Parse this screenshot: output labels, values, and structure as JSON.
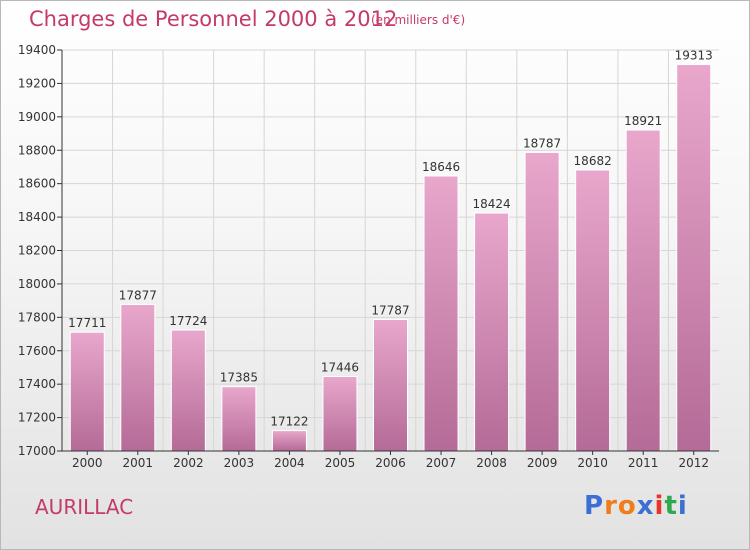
{
  "header": {
    "title": "Charges de Personnel 2000 à 2012",
    "subtitle": "(en milliers d'€)"
  },
  "footer": {
    "city": "AURILLAC",
    "logo": {
      "letters": [
        "P",
        "r",
        "o",
        "x",
        "i",
        "t",
        "i"
      ],
      "colors": [
        "#3b6fd4",
        "#f07d1a",
        "#f07d1a",
        "#3b6fd4",
        "#e8352b",
        "#2fa84f",
        "#3b6fd4"
      ]
    }
  },
  "colors": {
    "title": "#c43a6a",
    "bar_top": "#e9a7cc",
    "bar_bottom": "#b46b97",
    "grid": "#d6d6d6",
    "axis": "#333333"
  },
  "chart_data": {
    "type": "bar",
    "categories": [
      "2000",
      "2001",
      "2002",
      "2003",
      "2004",
      "2005",
      "2006",
      "2007",
      "2008",
      "2009",
      "2010",
      "2011",
      "2012"
    ],
    "values": [
      17711,
      17877,
      17724,
      17385,
      17122,
      17446,
      17787,
      18646,
      18424,
      18787,
      18682,
      18921,
      19313
    ],
    "title": "Charges de Personnel 2000 à 2012",
    "xlabel": "",
    "ylabel": "",
    "ylim": [
      17000,
      19400
    ],
    "yticks": [
      17000,
      17200,
      17400,
      17600,
      17800,
      18000,
      18200,
      18400,
      18600,
      18800,
      19000,
      19200,
      19400
    ],
    "grid": true,
    "data_labels": true
  }
}
